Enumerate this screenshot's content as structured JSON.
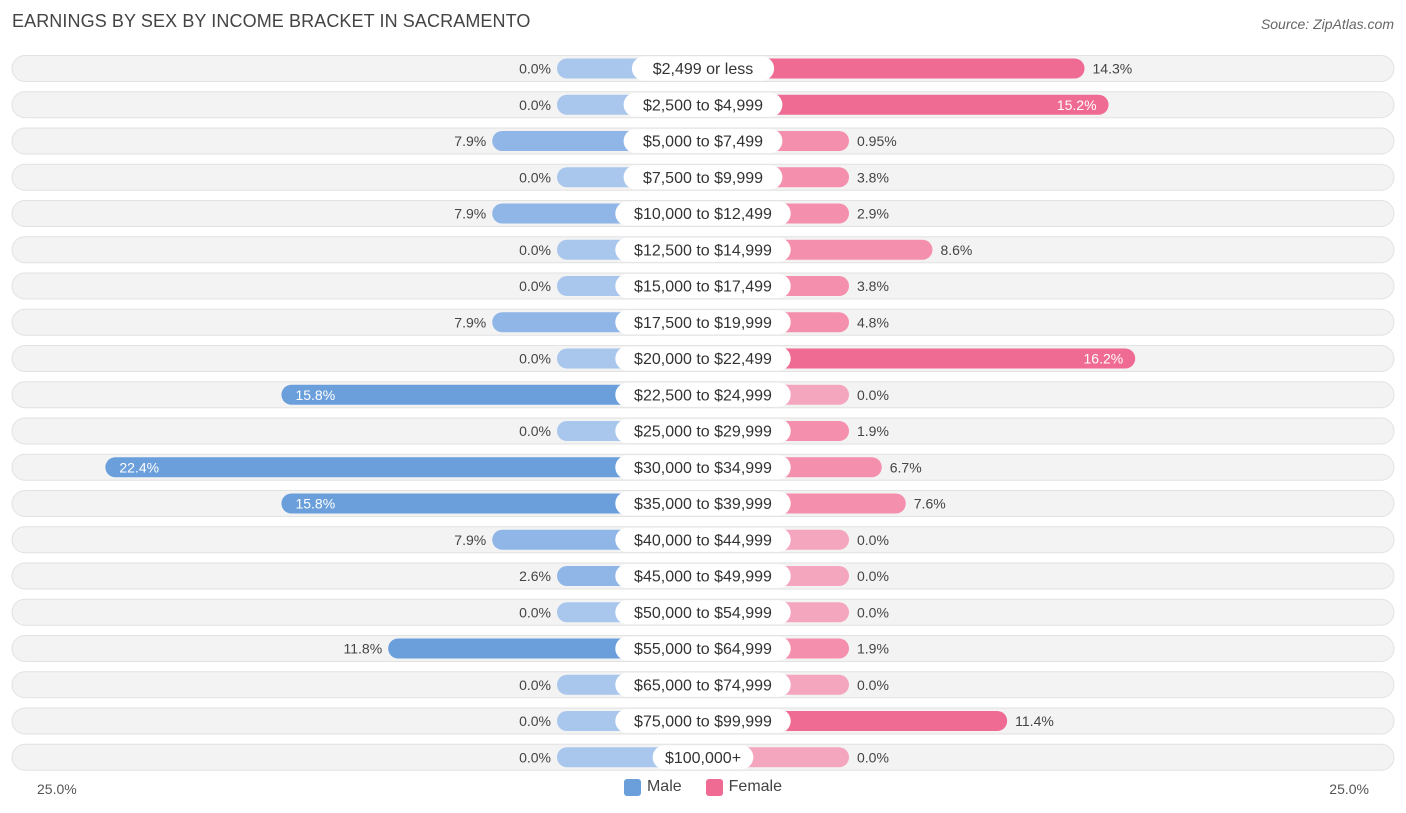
{
  "title": "EARNINGS BY SEX BY INCOME BRACKET IN SACRAMENTO",
  "source": "Source: ZipAtlas.com",
  "colors": {
    "male": "#6a9fdc",
    "male_light": "#a9c6ec",
    "female": "#f06b93",
    "female_light": "#f5a6bf"
  },
  "axis": {
    "left_label": "25.0%",
    "right_label": "25.0%"
  },
  "legend": {
    "male": "Male",
    "female": "Female"
  },
  "chart_data": {
    "type": "bar",
    "orientation": "horizontal-diverging",
    "title": "EARNINGS BY SEX BY INCOME BRACKET IN SACRAMENTO",
    "xlim": [
      -25,
      25
    ],
    "categories": [
      "$2,499 or less",
      "$2,500 to $4,999",
      "$5,000 to $7,499",
      "$7,500 to $9,999",
      "$10,000 to $12,499",
      "$12,500 to $14,999",
      "$15,000 to $17,499",
      "$17,500 to $19,999",
      "$20,000 to $22,499",
      "$22,500 to $24,999",
      "$25,000 to $29,999",
      "$30,000 to $34,999",
      "$35,000 to $39,999",
      "$40,000 to $44,999",
      "$45,000 to $49,999",
      "$50,000 to $54,999",
      "$55,000 to $64,999",
      "$65,000 to $74,999",
      "$75,000 to $99,999",
      "$100,000+"
    ],
    "series": [
      {
        "name": "Male",
        "values": [
          0.0,
          0.0,
          7.9,
          0.0,
          7.9,
          0.0,
          0.0,
          7.9,
          0.0,
          15.8,
          0.0,
          22.4,
          15.8,
          7.9,
          2.6,
          0.0,
          11.8,
          0.0,
          0.0,
          0.0
        ],
        "labels": [
          "0.0%",
          "0.0%",
          "7.9%",
          "0.0%",
          "7.9%",
          "0.0%",
          "0.0%",
          "7.9%",
          "0.0%",
          "15.8%",
          "0.0%",
          "22.4%",
          "15.8%",
          "7.9%",
          "2.6%",
          "0.0%",
          "11.8%",
          "0.0%",
          "0.0%",
          "0.0%"
        ]
      },
      {
        "name": "Female",
        "values": [
          14.3,
          15.2,
          0.95,
          3.8,
          2.9,
          8.6,
          3.8,
          4.8,
          16.2,
          0.0,
          1.9,
          6.7,
          7.6,
          0.0,
          0.0,
          0.0,
          1.9,
          0.0,
          11.4,
          0.0
        ],
        "labels": [
          "14.3%",
          "15.2%",
          "0.95%",
          "3.8%",
          "2.9%",
          "8.6%",
          "3.8%",
          "4.8%",
          "16.2%",
          "0.0%",
          "1.9%",
          "6.7%",
          "7.6%",
          "0.0%",
          "0.0%",
          "0.0%",
          "1.9%",
          "0.0%",
          "11.4%",
          "0.0%"
        ]
      }
    ]
  }
}
